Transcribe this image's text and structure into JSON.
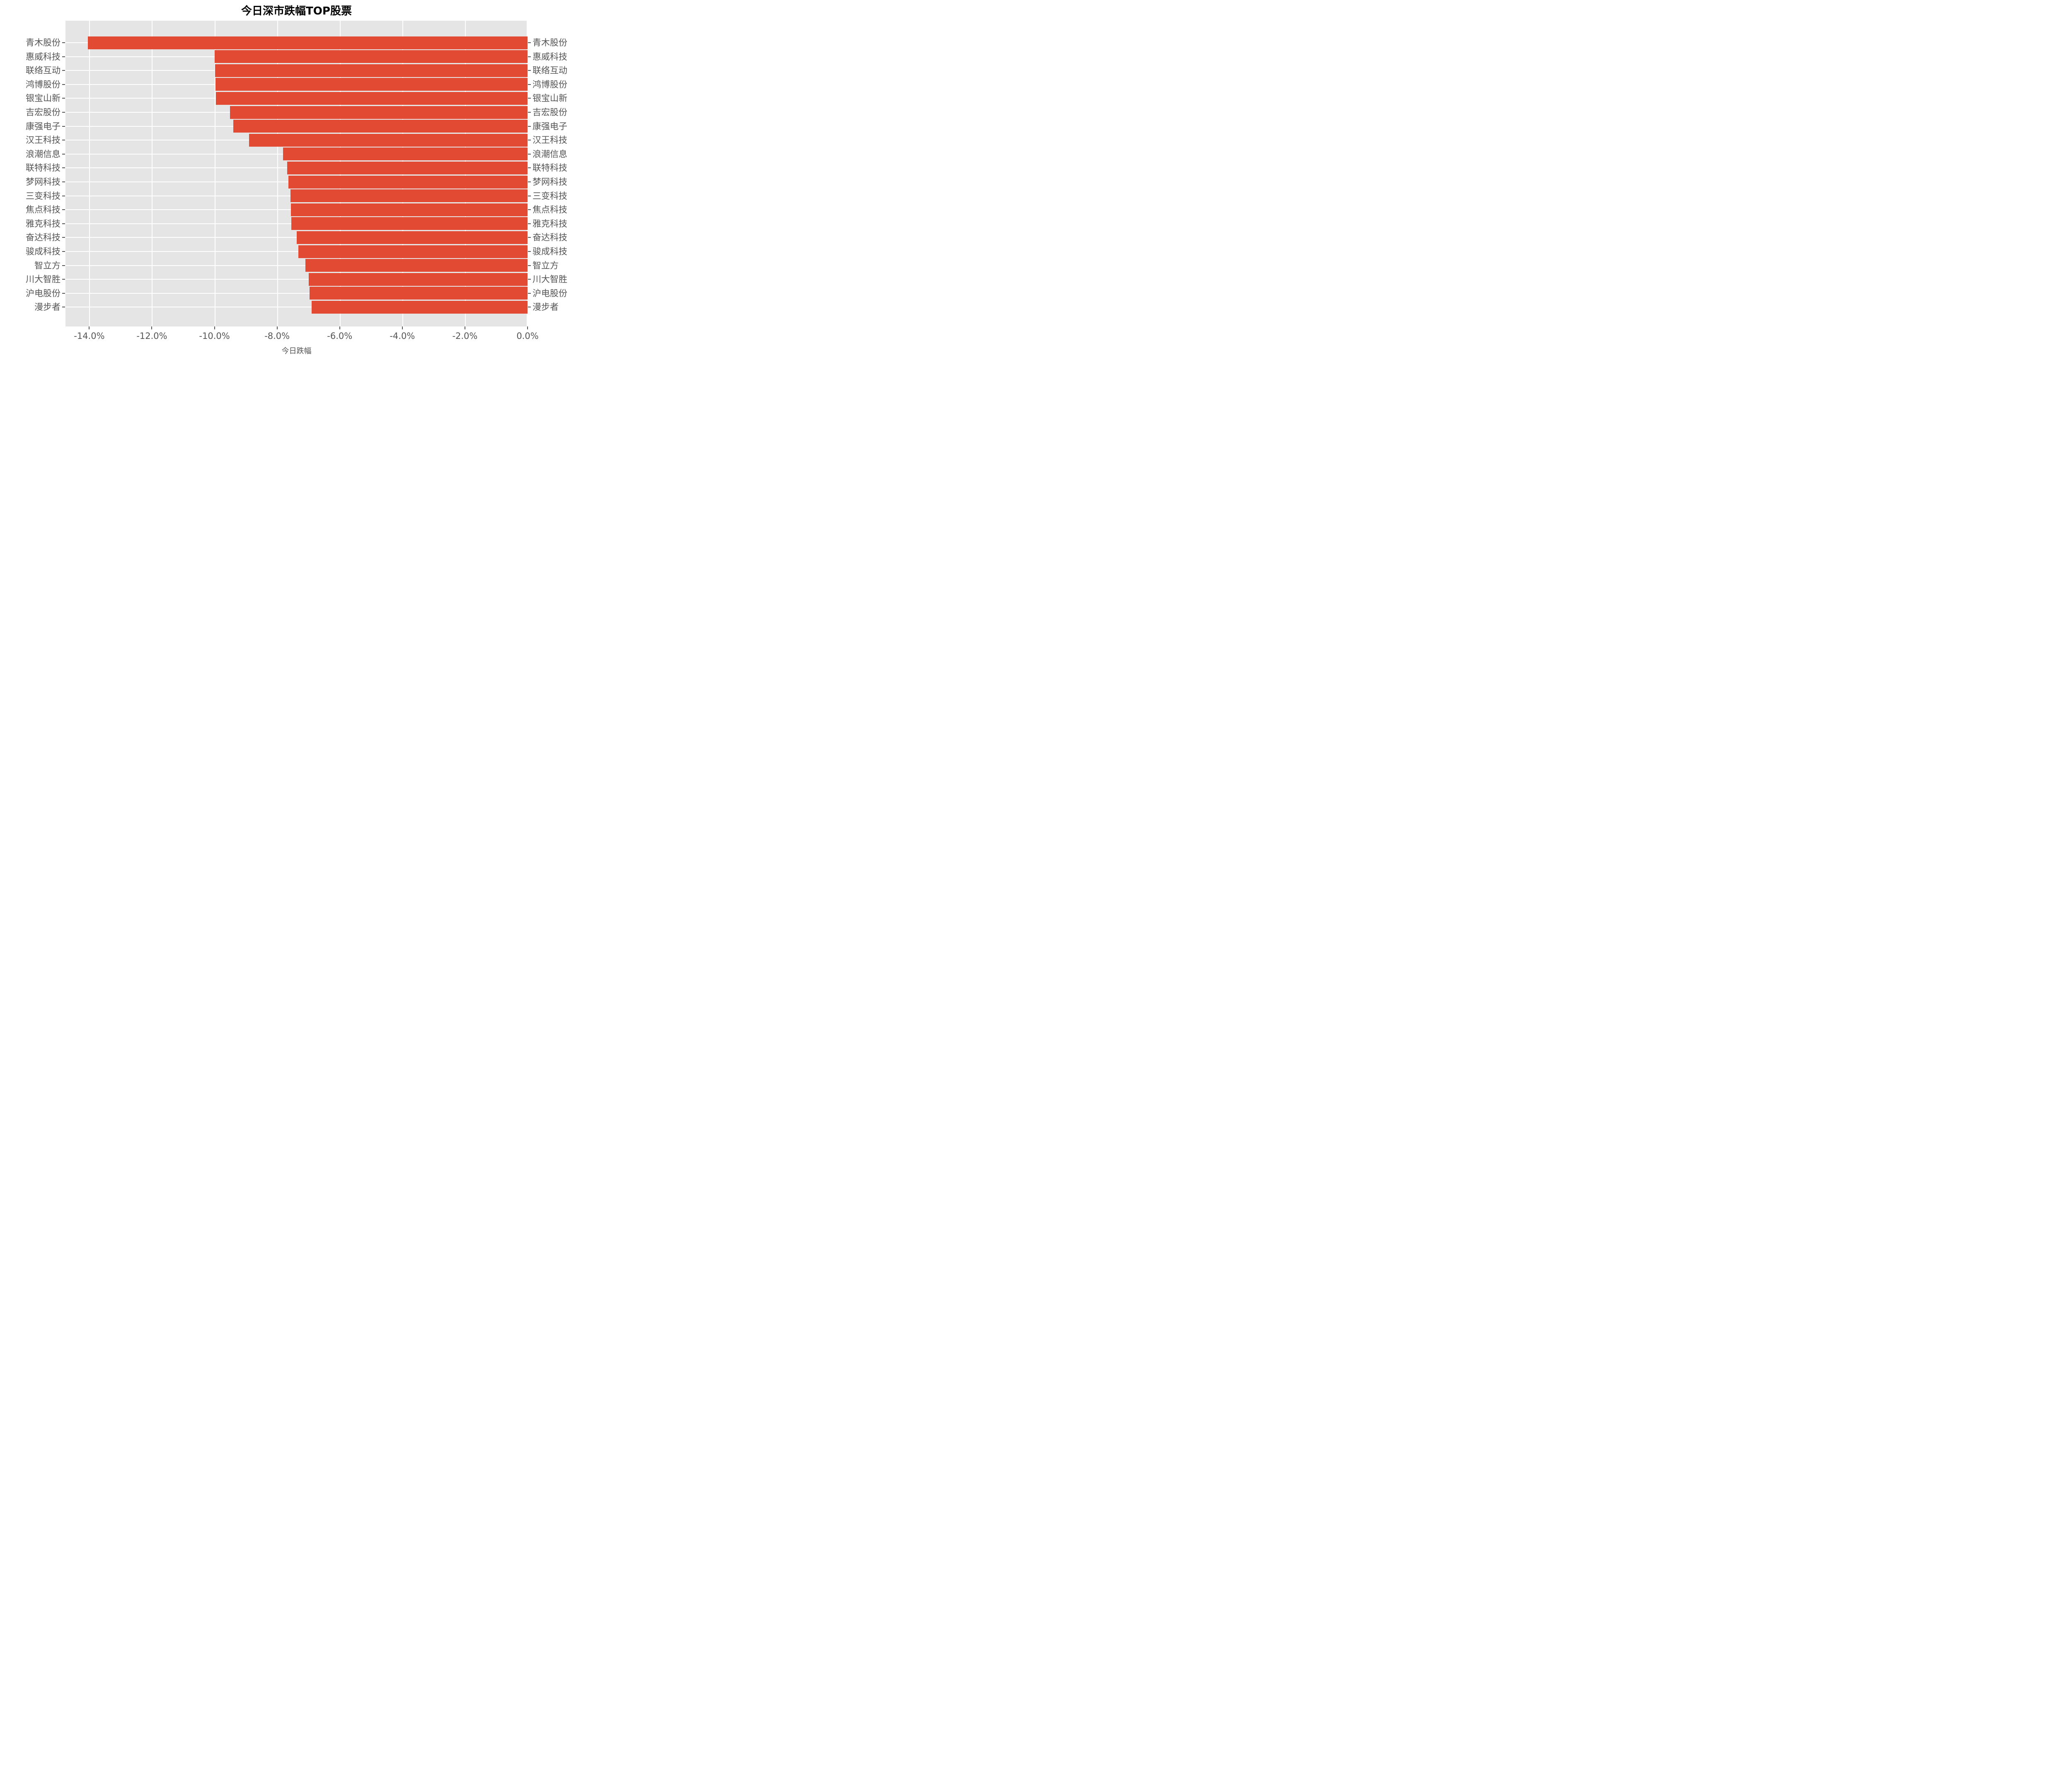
{
  "chart_data": {
    "type": "bar",
    "orientation": "horizontal",
    "title": "今日深市跌幅TOP股票",
    "xlabel": "今日跌幅",
    "ylabel": "",
    "unit": "%",
    "categories": [
      "青木股份",
      "惠威科技",
      "联络互动",
      "鸿博股份",
      "银宝山新",
      "吉宏股份",
      "康强电子",
      "汉王科技",
      "浪潮信息",
      "联特科技",
      "梦网科技",
      "三变科技",
      "焦点科技",
      "雅克科技",
      "奋达科技",
      "骏成科技",
      "智立方",
      "川大智胜",
      "沪电股份",
      "漫步者"
    ],
    "values": [
      -14.05,
      -10.0,
      -9.98,
      -9.97,
      -9.96,
      -9.5,
      -9.4,
      -8.9,
      -7.81,
      -7.68,
      -7.64,
      -7.57,
      -7.56,
      -7.55,
      -7.38,
      -7.32,
      -7.1,
      -6.99,
      -6.96,
      -6.9
    ],
    "x_ticks": {
      "labels": [
        "-14.0%",
        "-12.0%",
        "-10.0%",
        "-8.0%",
        "-6.0%",
        "-4.0%",
        "-2.0%",
        "0.0%"
      ],
      "values": [
        -14,
        -12,
        -10,
        -8,
        -6,
        -4,
        -2,
        0
      ]
    },
    "xlim": [
      -14.76,
      0
    ],
    "y_labels_position": "both-sides",
    "bars_sorted": "largest-decline-at-top",
    "grid": {
      "vertical": true,
      "horizontal": true,
      "on": true
    },
    "legend": "none",
    "colors": {
      "bar": "#E24A33",
      "panel_background": "#E5E5E5",
      "gridline": "#FFFFFF",
      "axis_text": "#555555",
      "title_text": "#000000",
      "figure_background": "#FFFFFF"
    }
  }
}
